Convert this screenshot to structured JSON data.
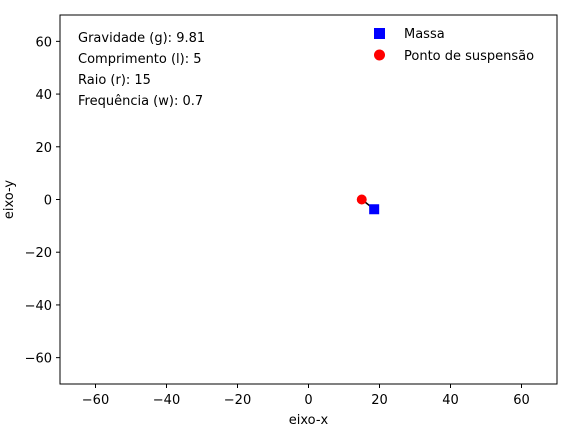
{
  "chart_data": {
    "type": "scatter",
    "xlabel": "eixo-x",
    "ylabel": "eixo-y",
    "xlim": [
      -70,
      70
    ],
    "ylim": [
      -70,
      70
    ],
    "xticks": [
      -60,
      -40,
      -20,
      0,
      20,
      40,
      60
    ],
    "yticks": [
      -60,
      -40,
      -20,
      0,
      20,
      40,
      60
    ],
    "grid": false,
    "annotations": [
      "Gravidade (g): 9.81",
      "Comprimento (l): 5",
      "Raio (r): 15",
      "Frequência (w): 0.7"
    ],
    "legend_position": "top-right",
    "series": [
      {
        "name": "Massa",
        "marker": "square",
        "color": "#0000ff",
        "points": [
          [
            18.5,
            -3.7
          ]
        ]
      },
      {
        "name": "Ponto de suspensão",
        "marker": "circle",
        "color": "#ff0000",
        "points": [
          [
            15,
            0
          ]
        ]
      }
    ],
    "rod": {
      "from": [
        15,
        0
      ],
      "to": [
        18.5,
        -3.7
      ],
      "color": "#000000"
    }
  }
}
